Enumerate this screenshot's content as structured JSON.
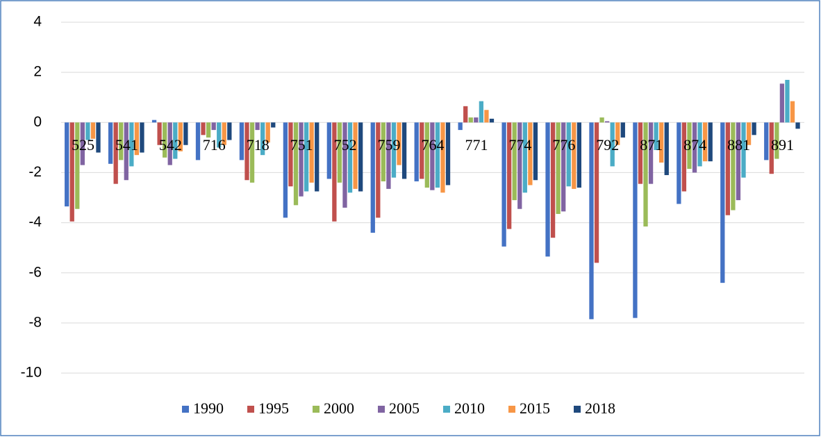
{
  "chart_data": {
    "type": "bar",
    "categories": [
      "525",
      "541",
      "542",
      "716",
      "718",
      "751",
      "752",
      "759",
      "764",
      "771",
      "774",
      "776",
      "792",
      "871",
      "874",
      "881",
      "891"
    ],
    "series": [
      {
        "name": "1990",
        "color": "#4472c4",
        "values": [
          -3.35,
          -1.65,
          0.1,
          -1.5,
          -1.5,
          -3.8,
          -2.25,
          -4.4,
          -2.35,
          -0.3,
          -4.95,
          -5.35,
          -7.85,
          -7.8,
          -3.25,
          -6.4,
          -1.5
        ]
      },
      {
        "name": "1995",
        "color": "#c0504d",
        "values": [
          -3.95,
          -2.45,
          -0.9,
          -0.5,
          -2.3,
          -2.55,
          -3.95,
          -3.8,
          -2.25,
          0.65,
          -4.25,
          -4.6,
          -5.6,
          -2.45,
          -2.75,
          -3.7,
          -2.05
        ]
      },
      {
        "name": "2000",
        "color": "#9bbb59",
        "values": [
          -3.45,
          -1.5,
          -1.4,
          -0.6,
          -2.4,
          -3.3,
          -2.4,
          -2.35,
          -2.6,
          0.2,
          -3.1,
          -3.65,
          0.2,
          -4.15,
          -1.85,
          -3.5,
          -1.45
        ]
      },
      {
        "name": "2005",
        "color": "#8064a2",
        "values": [
          -1.7,
          -2.3,
          -1.7,
          -0.3,
          -0.3,
          -2.95,
          -3.4,
          -2.65,
          -2.7,
          0.2,
          -3.45,
          -3.55,
          0.05,
          -2.45,
          -2.0,
          -3.1,
          1.55
        ]
      },
      {
        "name": "2010",
        "color": "#4bacc6",
        "values": [
          -0.7,
          -1.75,
          -1.45,
          -1.0,
          -1.3,
          -2.75,
          -2.8,
          -2.2,
          -2.6,
          0.85,
          -2.8,
          -2.55,
          -1.75,
          -1.1,
          -1.75,
          -2.2,
          1.7
        ]
      },
      {
        "name": "2015",
        "color": "#f79646",
        "values": [
          -0.65,
          -1.3,
          -1.15,
          -0.9,
          -0.8,
          -2.4,
          -2.65,
          -1.7,
          -2.8,
          0.5,
          -2.5,
          -2.65,
          -0.9,
          -1.6,
          -1.55,
          -0.9,
          0.85
        ]
      },
      {
        "name": "2018",
        "color": "#1f497d",
        "values": [
          -1.2,
          -1.2,
          -0.9,
          -0.7,
          -0.2,
          -2.75,
          -2.75,
          -2.25,
          -2.5,
          0.15,
          -2.3,
          -2.6,
          -0.6,
          -2.1,
          -1.55,
          -0.5,
          -0.25
        ]
      }
    ],
    "ylim": [
      -10,
      4
    ],
    "yticks": [
      -10,
      -8,
      -6,
      -4,
      -2,
      0,
      2,
      4
    ],
    "grid": true,
    "legend": "bottom"
  }
}
